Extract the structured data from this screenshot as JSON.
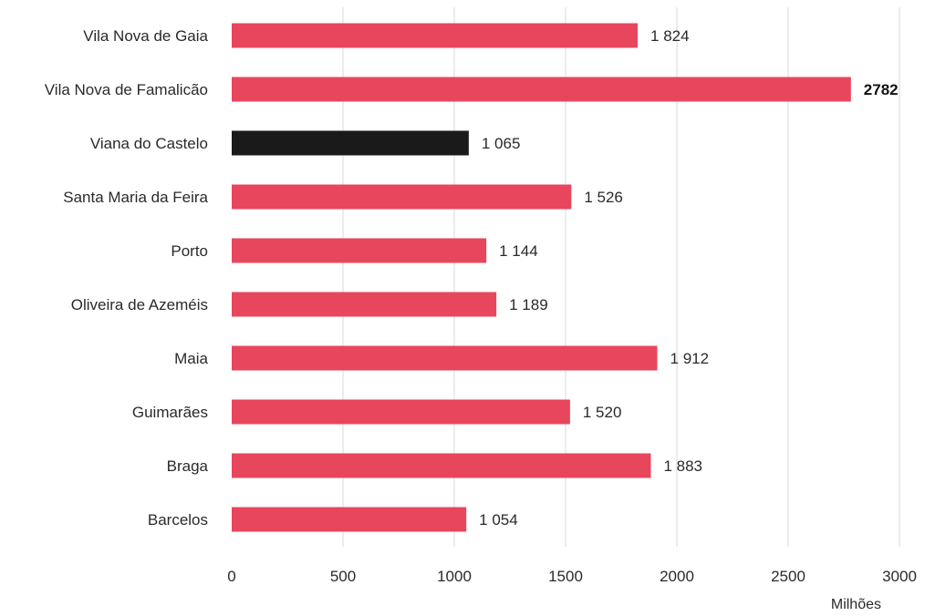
{
  "chart_data": {
    "type": "bar",
    "orientation": "horizontal",
    "title": "",
    "xlabel": "Milhões",
    "ylabel": "",
    "categories": [
      "Vila Nova de Gaia",
      "Vila Nova de Famalicão",
      "Viana do Castelo",
      "Santa Maria da Feira",
      "Porto",
      "Oliveira de Azeméis",
      "Maia",
      "Guimarães",
      "Braga",
      "Barcelos"
    ],
    "values": [
      1824,
      2782,
      1065,
      1526,
      1144,
      1189,
      1912,
      1520,
      1883,
      1054
    ],
    "value_labels": [
      "1 824",
      "2782",
      "1 065",
      "1 526",
      "1 144",
      "1 189",
      "1 912",
      "1 520",
      "1 883",
      "1 054"
    ],
    "bold_labels": [
      "2782"
    ],
    "highlight_category": "Viana do Castelo",
    "xlim": [
      0,
      3000
    ],
    "xticks": [
      0,
      500,
      1000,
      1500,
      2000,
      2500,
      3000
    ],
    "xtick_labels": [
      "0",
      "500",
      "1000",
      "1500",
      "2000",
      "2500",
      "3000"
    ],
    "grid": "vertical",
    "legend": "none",
    "colors": {
      "bar": "#e8465c",
      "highlight": "#1a1a1a",
      "grid": "#d9d9d9"
    }
  }
}
